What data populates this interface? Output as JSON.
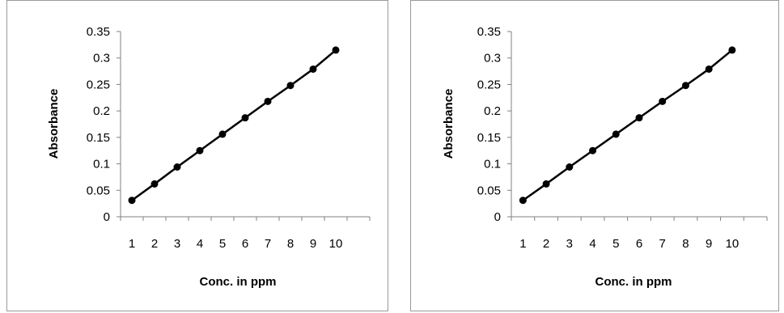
{
  "chart_data": [
    {
      "type": "line",
      "title": "",
      "xlabel": "Conc. in ppm",
      "ylabel": "Absorbance",
      "categories": [
        "1",
        "2",
        "3",
        "4",
        "5",
        "6",
        "7",
        "8",
        "9",
        "10"
      ],
      "ylim": [
        0,
        0.35
      ],
      "yticks": [
        "0",
        "0.05",
        "0.1",
        "0.15",
        "0.2",
        "0.25",
        "0.3",
        "0.35"
      ],
      "grid": false,
      "legend": "none",
      "series": [
        {
          "values": [
            0.031,
            0.062,
            0.094,
            0.125,
            0.156,
            0.187,
            0.218,
            0.248,
            0.279,
            0.315
          ],
          "color": "#000000",
          "marker": "circle"
        }
      ]
    },
    {
      "type": "line",
      "title": "",
      "xlabel": "Conc. in ppm",
      "ylabel": "Absorbance",
      "categories": [
        "1",
        "2",
        "3",
        "4",
        "5",
        "6",
        "7",
        "8",
        "9",
        "10"
      ],
      "ylim": [
        0,
        0.35
      ],
      "yticks": [
        "0",
        "0.05",
        "0.1",
        "0.15",
        "0.2",
        "0.25",
        "0.3",
        "0.35"
      ],
      "grid": false,
      "legend": "none",
      "series": [
        {
          "values": [
            0.031,
            0.062,
            0.094,
            0.125,
            0.156,
            0.187,
            0.218,
            0.248,
            0.279,
            0.315
          ],
          "color": "#000000",
          "marker": "circle"
        }
      ]
    }
  ]
}
